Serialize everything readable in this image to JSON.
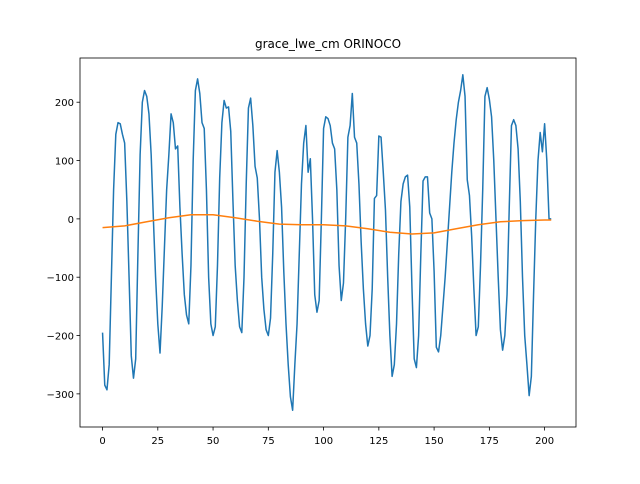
{
  "chart_data": {
    "type": "line",
    "title": "grace_lwe_cm ORINOCO",
    "xlim": [
      -10.2,
      214.2
    ],
    "ylim": [
      -356.8,
      275.8
    ],
    "xticks": [
      0,
      25,
      50,
      75,
      100,
      125,
      150,
      175,
      200
    ],
    "yticks": [
      {
        "value": -300,
        "label": "−300"
      },
      {
        "value": -200,
        "label": "−200"
      },
      {
        "value": -100,
        "label": "−100"
      },
      0,
      100,
      200
    ],
    "grid": false,
    "series": [
      {
        "color": "#1f77b4",
        "x": [
          0,
          1,
          2,
          3,
          4,
          5,
          6,
          7,
          8,
          9,
          10,
          11,
          12,
          13,
          14,
          15,
          16,
          17,
          18,
          19,
          20,
          21,
          22,
          23,
          24,
          25,
          26,
          27,
          28,
          29,
          30,
          31,
          32,
          33,
          34,
          35,
          36,
          37,
          38,
          39,
          40,
          41,
          42,
          43,
          44,
          45,
          46,
          47,
          48,
          49,
          50,
          51,
          52,
          53,
          54,
          55,
          56,
          57,
          58,
          59,
          60,
          61,
          62,
          63,
          64,
          65,
          66,
          67,
          68,
          69,
          70,
          71,
          72,
          73,
          74,
          75,
          76,
          77,
          78,
          79,
          80,
          81,
          82,
          83,
          84,
          85,
          86,
          87,
          88,
          89,
          90,
          91,
          92,
          93,
          94,
          95,
          96,
          97,
          98,
          99,
          100,
          101,
          102,
          103,
          104,
          105,
          106,
          107,
          108,
          109,
          110,
          111,
          112,
          113,
          114,
          115,
          116,
          117,
          118,
          119,
          120,
          121,
          122,
          123,
          124,
          125,
          126,
          127,
          128,
          129,
          130,
          131,
          132,
          133,
          134,
          135,
          136,
          137,
          138,
          139,
          140,
          141,
          142,
          143,
          144,
          145,
          146,
          147,
          148,
          149,
          150,
          151,
          152,
          153,
          154,
          155,
          156,
          157,
          158,
          159,
          160,
          161,
          162,
          163,
          164,
          165,
          166,
          167,
          168,
          169,
          170,
          171,
          172,
          173,
          174,
          175,
          176,
          177,
          178,
          179,
          180,
          181,
          182,
          183,
          184,
          185,
          186,
          187,
          188,
          189,
          190,
          191,
          192,
          193,
          194,
          195,
          196,
          197,
          198,
          199,
          200,
          201,
          202,
          203
        ],
        "values": [
          -195,
          -285,
          -293,
          -250,
          -100,
          50,
          145,
          165,
          163,
          145,
          130,
          30,
          -100,
          -235,
          -273,
          -240,
          -60,
          110,
          200,
          220,
          210,
          180,
          110,
          0,
          -100,
          -180,
          -230,
          -150,
          -50,
          50,
          110,
          180,
          165,
          120,
          125,
          20,
          -60,
          -130,
          -165,
          -180,
          -80,
          100,
          220,
          240,
          215,
          165,
          155,
          50,
          -100,
          -180,
          -200,
          -185,
          -80,
          70,
          165,
          203,
          190,
          192,
          150,
          30,
          -80,
          -140,
          -185,
          -195,
          -100,
          60,
          190,
          207,
          160,
          90,
          70,
          0,
          -100,
          -155,
          -190,
          -200,
          -170,
          -60,
          80,
          117,
          80,
          20,
          -90,
          -180,
          -250,
          -305,
          -328,
          -250,
          -180,
          -60,
          60,
          130,
          160,
          80,
          103,
          0,
          -130,
          -160,
          -140,
          0,
          155,
          175,
          172,
          160,
          130,
          120,
          50,
          -80,
          -140,
          -110,
          0,
          140,
          160,
          215,
          140,
          130,
          60,
          -40,
          -120,
          -180,
          -218,
          -200,
          -120,
          35,
          40,
          142,
          140,
          80,
          15,
          -100,
          -200,
          -270,
          -250,
          -180,
          -60,
          30,
          60,
          72,
          75,
          20,
          -120,
          -240,
          -255,
          -200,
          -60,
          65,
          72,
          72,
          10,
          0,
          -90,
          -220,
          -228,
          -200,
          -150,
          -100,
          -40,
          20,
          80,
          130,
          170,
          200,
          220,
          247,
          210,
          67,
          40,
          -30,
          -120,
          -200,
          -185,
          -80,
          50,
          210,
          225,
          205,
          175,
          100,
          0,
          -100,
          -190,
          -225,
          -200,
          -130,
          20,
          160,
          170,
          160,
          120,
          30,
          -100,
          -200,
          -250,
          -303,
          -270,
          -130,
          0,
          100,
          148,
          115,
          163,
          100,
          0,
          0
        ]
      },
      {
        "color": "#ff7f0e",
        "x": [
          0,
          10,
          20,
          30,
          40,
          50,
          60,
          70,
          80,
          90,
          100,
          110,
          120,
          130,
          140,
          150,
          160,
          170,
          180,
          190,
          200,
          203
        ],
        "values": [
          -15,
          -12,
          -5,
          2,
          7,
          7,
          2,
          -4,
          -9,
          -10,
          -10,
          -12,
          -17,
          -23,
          -26,
          -24,
          -17,
          -10,
          -5,
          -3,
          -2,
          -2
        ]
      }
    ]
  }
}
